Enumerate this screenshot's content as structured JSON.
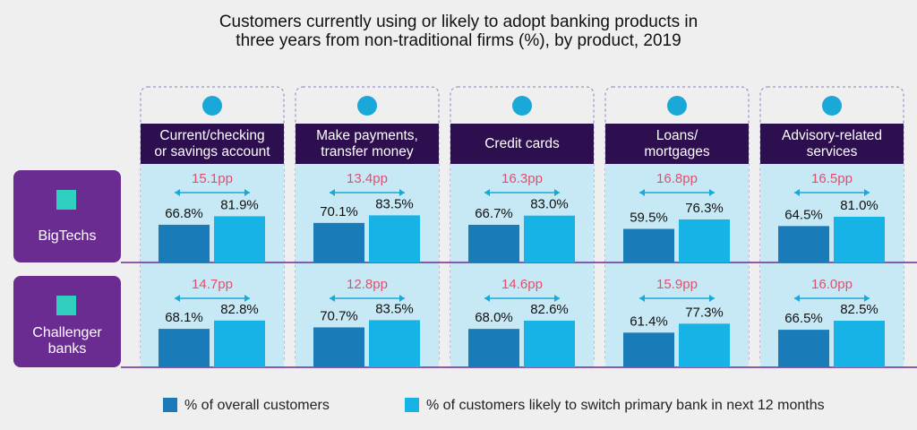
{
  "chart_data": {
    "type": "bar",
    "title": "Customers currently using or likely to adopt banking products in\nthree years  from non-traditional  firms (%), by product, 2019",
    "categories": [
      "Current/checking\nor savings account",
      "Make payments,\ntransfer money",
      "Credit cards",
      "Loans/\nmortgages",
      "Advisory-related\nservices"
    ],
    "groups": [
      "BigTechs",
      "Challenger\nbanks"
    ],
    "series": [
      {
        "name": "% of overall customers",
        "color": "#1a7bb9",
        "values": [
          [
            66.8,
            70.1,
            66.7,
            59.5,
            64.5
          ],
          [
            68.1,
            70.7,
            68.0,
            61.4,
            66.5
          ]
        ],
        "value_labels": [
          [
            "66.8%",
            "70.1%",
            "66.7%",
            "59.5%",
            "64.5%"
          ],
          [
            "68.1%",
            "70.7%",
            "68.0%",
            "61.4%",
            "66.5%"
          ]
        ]
      },
      {
        "name": "% of customers likely to switch primary bank in next 12 months",
        "color": "#17b3e6",
        "values": [
          [
            81.9,
            83.5,
            83.0,
            76.3,
            81.0
          ],
          [
            82.8,
            83.5,
            82.6,
            77.3,
            82.5
          ]
        ],
        "value_labels": [
          [
            "81.9%",
            "83.5%",
            "83.0%",
            "76.3%",
            "81.0%"
          ],
          [
            "82.8%",
            "83.5%",
            "82.6%",
            "77.3%",
            "82.5%"
          ]
        ]
      }
    ],
    "differences": {
      "values": [
        [
          15.1,
          13.4,
          16.3,
          16.8,
          16.5
        ],
        [
          14.7,
          12.8,
          14.6,
          15.9,
          16.0
        ]
      ],
      "value_labels": [
        [
          "15.1pp",
          "13.4pp",
          "16.3pp",
          "16.8pp",
          "16.5pp"
        ],
        [
          "14.7pp",
          "12.8pp",
          "14.6pp",
          "15.9pp",
          "16.0pp"
        ]
      ]
    }
  }
}
